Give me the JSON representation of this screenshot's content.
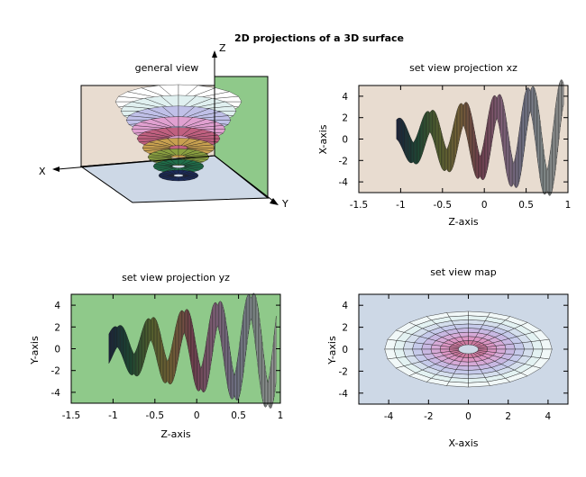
{
  "title": "2D projections of a 3D surface",
  "colors": {
    "wall_tan": "#e8dcd0",
    "wall_green": "#8fc98a",
    "floor_blue": "#cdd8e6",
    "panel_xz_bg": "#e8dcd0",
    "panel_yz_bg": "#8fc98a",
    "panel_map_bg": "#cdd8e6",
    "mesh_line": "#1a1a1a",
    "palette": [
      "#1b2a5a",
      "#1f6f4a",
      "#8aa040",
      "#c8a050",
      "#c06080",
      "#e0a0d0",
      "#c0c0e8",
      "#e0f0f0",
      "#ffffff"
    ]
  },
  "chart_data": [
    {
      "type": "surface-3d",
      "subtitle": "general view",
      "axes": {
        "x": "X",
        "y": "Y",
        "z": "Z"
      }
    },
    {
      "type": "surface-projection",
      "subtitle": "set view projection xz",
      "xlabel": "Z-axis",
      "ylabel": "X-axis",
      "xlim": [
        -1.5,
        1
      ],
      "ylim": [
        -5,
        5
      ],
      "xticks": [
        -1.5,
        -1,
        -0.5,
        0,
        0.5,
        1
      ],
      "yticks": [
        4,
        2,
        0,
        -2,
        -4
      ],
      "xtick_labels": [
        "-1.5",
        "-1",
        "-0.5",
        "0",
        "0.5",
        "1"
      ],
      "ytick_labels": [
        "4",
        "2",
        "0",
        "-2",
        "-4"
      ],
      "spiral": {
        "t_start": -1.05,
        "t_end": 0.95,
        "turns": 5,
        "r_min": 0.9,
        "r_max": 4.2
      }
    },
    {
      "type": "surface-projection",
      "subtitle": "set view projection yz",
      "xlabel": "Z-axis",
      "ylabel": "Y-axis",
      "xlim": [
        -1.5,
        1
      ],
      "ylim": [
        -5,
        5
      ],
      "xticks": [
        -1.5,
        -1,
        -0.5,
        0,
        0.5,
        1
      ],
      "yticks": [
        4,
        2,
        0,
        -2,
        -4
      ],
      "xtick_labels": [
        "-1.5",
        "-1",
        "-0.5",
        "0",
        "0.5",
        "1"
      ],
      "ytick_labels": [
        "4",
        "2",
        "0",
        "-2",
        "-4"
      ],
      "spiral": {
        "t_start": -1.05,
        "t_end": 0.95,
        "turns": 5,
        "r_min": 0.9,
        "r_max": 4.2
      }
    },
    {
      "type": "surface-map",
      "subtitle": "set view map",
      "xlabel": "X-axis",
      "ylabel": "Y-axis",
      "xlim": [
        -5.5,
        5
      ],
      "ylim": [
        -5,
        5
      ],
      "xticks": [
        -4,
        -2,
        0,
        2,
        4
      ],
      "yticks": [
        4,
        2,
        0,
        -2,
        -4
      ],
      "xtick_labels": [
        "-4",
        "-2",
        "0",
        "2",
        "4"
      ],
      "ytick_labels": [
        "4",
        "2",
        "0",
        "-2",
        "-4"
      ],
      "r_max": 4.2,
      "r_min": 0.5
    }
  ]
}
